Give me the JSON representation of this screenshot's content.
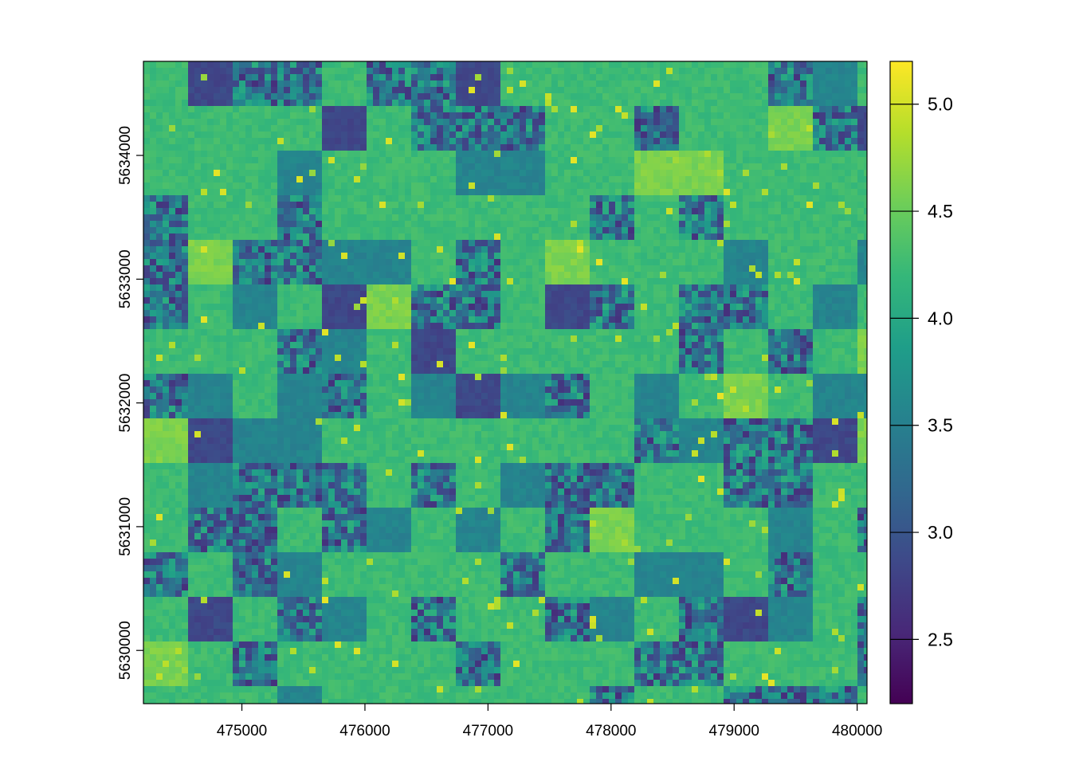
{
  "chart_data": {
    "type": "heatmap",
    "title": "",
    "xlabel": "",
    "ylabel": "",
    "x_range": [
      474200,
      480080
    ],
    "y_range": [
      5629570,
      5634760
    ],
    "x_ticks": [
      475000,
      476000,
      477000,
      478000,
      479000,
      480000
    ],
    "x_tick_labels": [
      "475000",
      "476000",
      "477000",
      "478000",
      "479000",
      "480000"
    ],
    "y_ticks": [
      5630000,
      5631000,
      5632000,
      5633000,
      5634000
    ],
    "y_tick_labels": [
      "5630000",
      "5631000",
      "5632000",
      "5633000",
      "5634000"
    ],
    "value_range": [
      2.2,
      5.2
    ],
    "colorbar_ticks": [
      2.5,
      3.0,
      3.5,
      4.0,
      4.5,
      5.0
    ],
    "colorbar_tick_labels": [
      "2.5",
      "3.0",
      "3.5",
      "4.0",
      "4.5",
      "5.0"
    ],
    "colormap": "viridis",
    "colormap_stops": [
      "#440154",
      "#482878",
      "#3e4989",
      "#31688e",
      "#26828e",
      "#1f9e89",
      "#35b779",
      "#6ece58",
      "#b5de2b",
      "#fde725"
    ],
    "frame_color": "#000000",
    "grid": false
  }
}
